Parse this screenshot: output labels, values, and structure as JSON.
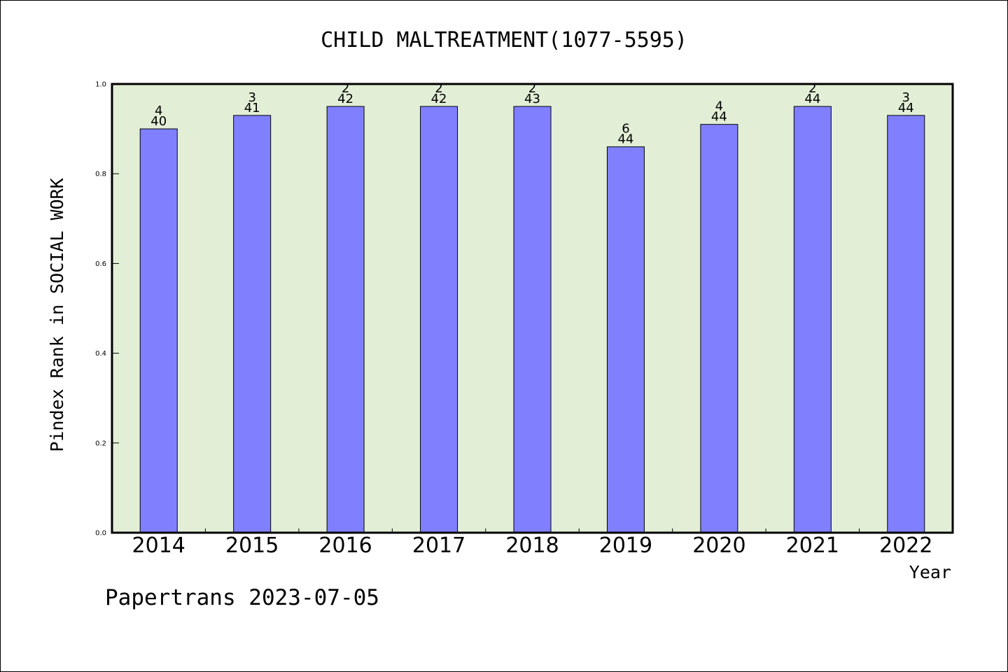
{
  "chart_data": {
    "type": "bar",
    "title": "CHILD MALTREATMENT(1077-5595)",
    "xlabel": "Year",
    "ylabel": "Pindex Rank in SOCIAL WORK",
    "ylim": [
      0,
      1.0
    ],
    "yticks": [
      "0.0",
      "0.2",
      "0.4",
      "0.6",
      "0.8",
      "1.0"
    ],
    "categories": [
      "2014",
      "2015",
      "2016",
      "2017",
      "2018",
      "2019",
      "2020",
      "2021",
      "2022"
    ],
    "values": [
      0.9,
      0.93,
      0.95,
      0.95,
      0.95,
      0.86,
      0.91,
      0.95,
      0.93
    ],
    "rank_labels": [
      "4",
      "3",
      "2",
      "2",
      "2",
      "6",
      "4",
      "2",
      "3"
    ],
    "total_labels": [
      "40",
      "41",
      "42",
      "42",
      "43",
      "44",
      "44",
      "44",
      "44"
    ],
    "grid": false,
    "colors": {
      "bar": "#8080ff",
      "plot_background": "#e2efd6",
      "axis": "#000000"
    }
  },
  "footer": {
    "credit": "Papertrans 2023-07-05"
  }
}
